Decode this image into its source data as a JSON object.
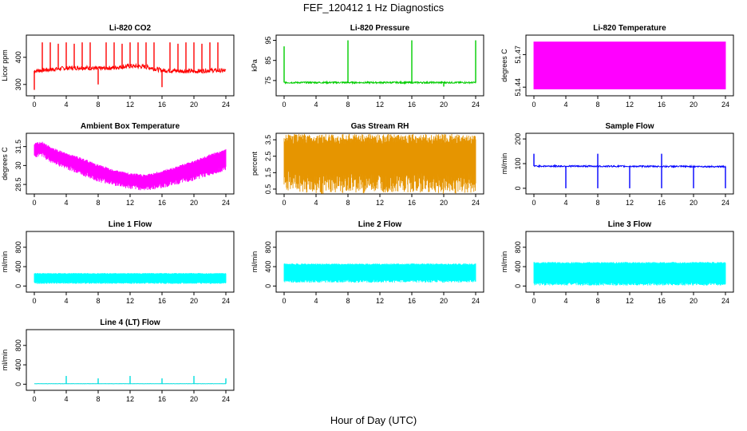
{
  "figure": {
    "title": "FEF_120412  1 Hz Diagnostics",
    "xlabel": "Hour of Day (UTC)"
  },
  "chart_data": [
    {
      "id": "co2",
      "type": "line",
      "title": "Li-820 CO2",
      "ylabel": "Licor ppm",
      "color": "#ff0000",
      "xlim": [
        0,
        24
      ],
      "ylim": [
        270,
        470
      ],
      "yticks": [
        300,
        400
      ],
      "xticks": [
        0,
        4,
        8,
        12,
        16,
        20,
        24
      ],
      "baseline": [
        [
          0,
          350
        ],
        [
          2,
          355
        ],
        [
          4,
          360
        ],
        [
          6,
          362
        ],
        [
          8,
          358
        ],
        [
          10,
          362
        ],
        [
          12,
          368
        ],
        [
          14,
          365
        ],
        [
          16,
          352
        ],
        [
          18,
          350
        ],
        [
          20,
          348
        ],
        [
          22,
          352
        ],
        [
          24,
          350
        ]
      ],
      "spikes": [
        [
          0,
          280
        ],
        [
          1,
          455
        ],
        [
          2,
          455
        ],
        [
          3,
          450
        ],
        [
          4,
          455
        ],
        [
          5,
          450
        ],
        [
          6,
          455
        ],
        [
          7,
          455
        ],
        [
          8,
          300
        ],
        [
          9,
          455
        ],
        [
          10,
          455
        ],
        [
          11,
          450
        ],
        [
          12,
          455
        ],
        [
          13,
          455
        ],
        [
          14,
          455
        ],
        [
          15,
          455
        ],
        [
          16,
          290
        ],
        [
          17,
          455
        ],
        [
          18,
          450
        ],
        [
          19,
          455
        ],
        [
          20,
          455
        ],
        [
          21,
          450
        ],
        [
          22,
          455
        ],
        [
          23,
          455
        ]
      ],
      "noise": 8
    },
    {
      "id": "pressure",
      "type": "line",
      "title": "Li-820 Pressure",
      "ylabel": "kPa",
      "color": "#00cc00",
      "xlim": [
        0,
        24
      ],
      "ylim": [
        69,
        96
      ],
      "yticks": [
        75,
        85,
        95
      ],
      "xticks": [
        0,
        4,
        8,
        12,
        16,
        20,
        24
      ],
      "baseline": [
        [
          0,
          74
        ],
        [
          24,
          74
        ]
      ],
      "spikes": [
        [
          0,
          92
        ],
        [
          8,
          95
        ],
        [
          16,
          95
        ],
        [
          20,
          72
        ],
        [
          24,
          95
        ]
      ],
      "noise": 0.4
    },
    {
      "id": "licor_temp",
      "type": "area",
      "title": "Li-820 Temperature",
      "ylabel": "degrees C",
      "color": "#ff00ff",
      "xlim": [
        0,
        24
      ],
      "ylim": [
        51.435,
        51.485
      ],
      "yticks": [
        51.44,
        51.47
      ],
      "xticks": [
        0,
        4,
        8,
        12,
        16,
        20,
        24
      ],
      "band_low": [
        [
          0,
          51.438
        ],
        [
          24,
          51.438
        ]
      ],
      "band_high": [
        [
          0,
          51.482
        ],
        [
          24,
          51.482
        ]
      ],
      "noise": 0
    },
    {
      "id": "ambient",
      "type": "area",
      "title": "Ambient Box Temperature",
      "ylabel": "degrees C",
      "color": "#ff00ff",
      "xlim": [
        0,
        24
      ],
      "ylim": [
        28,
        32.3
      ],
      "yticks": [
        28.5,
        30.0,
        31.5
      ],
      "xticks": [
        0,
        4,
        8,
        12,
        16,
        20,
        24
      ],
      "band_low": [
        [
          0,
          30.8
        ],
        [
          1,
          30.9
        ],
        [
          2,
          30.4
        ],
        [
          4,
          29.9
        ],
        [
          6,
          29.4
        ],
        [
          8,
          28.9
        ],
        [
          10,
          28.6
        ],
        [
          12,
          28.3
        ],
        [
          14,
          28.2
        ],
        [
          16,
          28.4
        ],
        [
          18,
          28.7
        ],
        [
          20,
          29.0
        ],
        [
          22,
          29.4
        ],
        [
          24,
          29.8
        ]
      ],
      "band_high": [
        [
          0,
          31.7
        ],
        [
          1,
          31.8
        ],
        [
          2,
          31.4
        ],
        [
          4,
          30.9
        ],
        [
          6,
          30.5
        ],
        [
          8,
          30.0
        ],
        [
          10,
          29.6
        ],
        [
          12,
          29.3
        ],
        [
          14,
          29.2
        ],
        [
          16,
          29.5
        ],
        [
          18,
          29.9
        ],
        [
          20,
          30.3
        ],
        [
          22,
          30.8
        ],
        [
          24,
          31.2
        ]
      ],
      "noise": 0.2
    },
    {
      "id": "rh",
      "type": "area",
      "title": "Gas Stream RH",
      "ylabel": "percent",
      "color": "#e69500",
      "xlim": [
        0,
        24
      ],
      "ylim": [
        0.4,
        3.7
      ],
      "yticks": [
        0.5,
        1.5,
        2.5,
        3.5
      ],
      "xticks": [
        0,
        4,
        8,
        12,
        16,
        20,
        24
      ],
      "band_low": [
        [
          0,
          1.0
        ],
        [
          4,
          0.8
        ],
        [
          8,
          0.8
        ],
        [
          12,
          0.9
        ],
        [
          16,
          0.9
        ],
        [
          20,
          0.8
        ],
        [
          24,
          0.9
        ]
      ],
      "band_high": [
        [
          0,
          3.55
        ],
        [
          24,
          3.55
        ]
      ],
      "noise": 0.6
    },
    {
      "id": "sample_flow",
      "type": "line",
      "title": "Sample Flow",
      "ylabel": "ml/min",
      "color": "#0000ff",
      "xlim": [
        0,
        24
      ],
      "ylim": [
        -10,
        210
      ],
      "yticks": [
        0,
        100,
        200
      ],
      "xticks": [
        0,
        4,
        8,
        12,
        16,
        20,
        24
      ],
      "baseline": [
        [
          0,
          90
        ],
        [
          24,
          88
        ]
      ],
      "spikes": [
        [
          0,
          140
        ],
        [
          4,
          0
        ],
        [
          8,
          140
        ],
        [
          8,
          0
        ],
        [
          12,
          0
        ],
        [
          16,
          140
        ],
        [
          16,
          0
        ],
        [
          20,
          0
        ],
        [
          24,
          0
        ]
      ],
      "noise": 3
    },
    {
      "id": "line1",
      "type": "area",
      "title": "Line 1 Flow",
      "ylabel": "ml/min",
      "color": "#00ffff",
      "xlim": [
        0,
        24
      ],
      "ylim": [
        -60,
        1060
      ],
      "yticks": [
        0,
        400,
        800
      ],
      "xticks": [
        0,
        4,
        8,
        12,
        16,
        20,
        24
      ],
      "band_low": [
        [
          0,
          60
        ],
        [
          24,
          60
        ]
      ],
      "band_high": [
        [
          0,
          260
        ],
        [
          24,
          260
        ]
      ],
      "noise": 15
    },
    {
      "id": "line2",
      "type": "area",
      "title": "Line 2 Flow",
      "ylabel": "ml/min",
      "color": "#00ffff",
      "xlim": [
        0,
        24
      ],
      "ylim": [
        -60,
        1060
      ],
      "yticks": [
        0,
        400,
        800
      ],
      "xticks": [
        0,
        4,
        8,
        12,
        16,
        20,
        24
      ],
      "band_low": [
        [
          0,
          100
        ],
        [
          24,
          100
        ]
      ],
      "band_high": [
        [
          0,
          450
        ],
        [
          24,
          450
        ]
      ],
      "noise": 30
    },
    {
      "id": "line3",
      "type": "area",
      "title": "Line 3 Flow",
      "ylabel": "ml/min",
      "color": "#00ffff",
      "xlim": [
        0,
        24
      ],
      "ylim": [
        -60,
        1060
      ],
      "yticks": [
        0,
        400,
        800
      ],
      "xticks": [
        0,
        4,
        8,
        12,
        16,
        20,
        24
      ],
      "band_low": [
        [
          0,
          40
        ],
        [
          24,
          40
        ]
      ],
      "band_high": [
        [
          0,
          480
        ],
        [
          24,
          480
        ]
      ],
      "noise": 30
    },
    {
      "id": "line4",
      "type": "line",
      "title": "Line 4 (LT) Flow",
      "ylabel": "ml/min",
      "color": "#00dddd",
      "xlim": [
        0,
        24
      ],
      "ylim": [
        -60,
        1060
      ],
      "yticks": [
        0,
        400,
        800
      ],
      "xticks": [
        0,
        4,
        8,
        12,
        16,
        20,
        24
      ],
      "baseline": [
        [
          0,
          10
        ],
        [
          24,
          10
        ]
      ],
      "spikes": [
        [
          4,
          170
        ],
        [
          8,
          120
        ],
        [
          12,
          170
        ],
        [
          16,
          120
        ],
        [
          20,
          170
        ],
        [
          24,
          120
        ]
      ],
      "noise": 2
    }
  ]
}
